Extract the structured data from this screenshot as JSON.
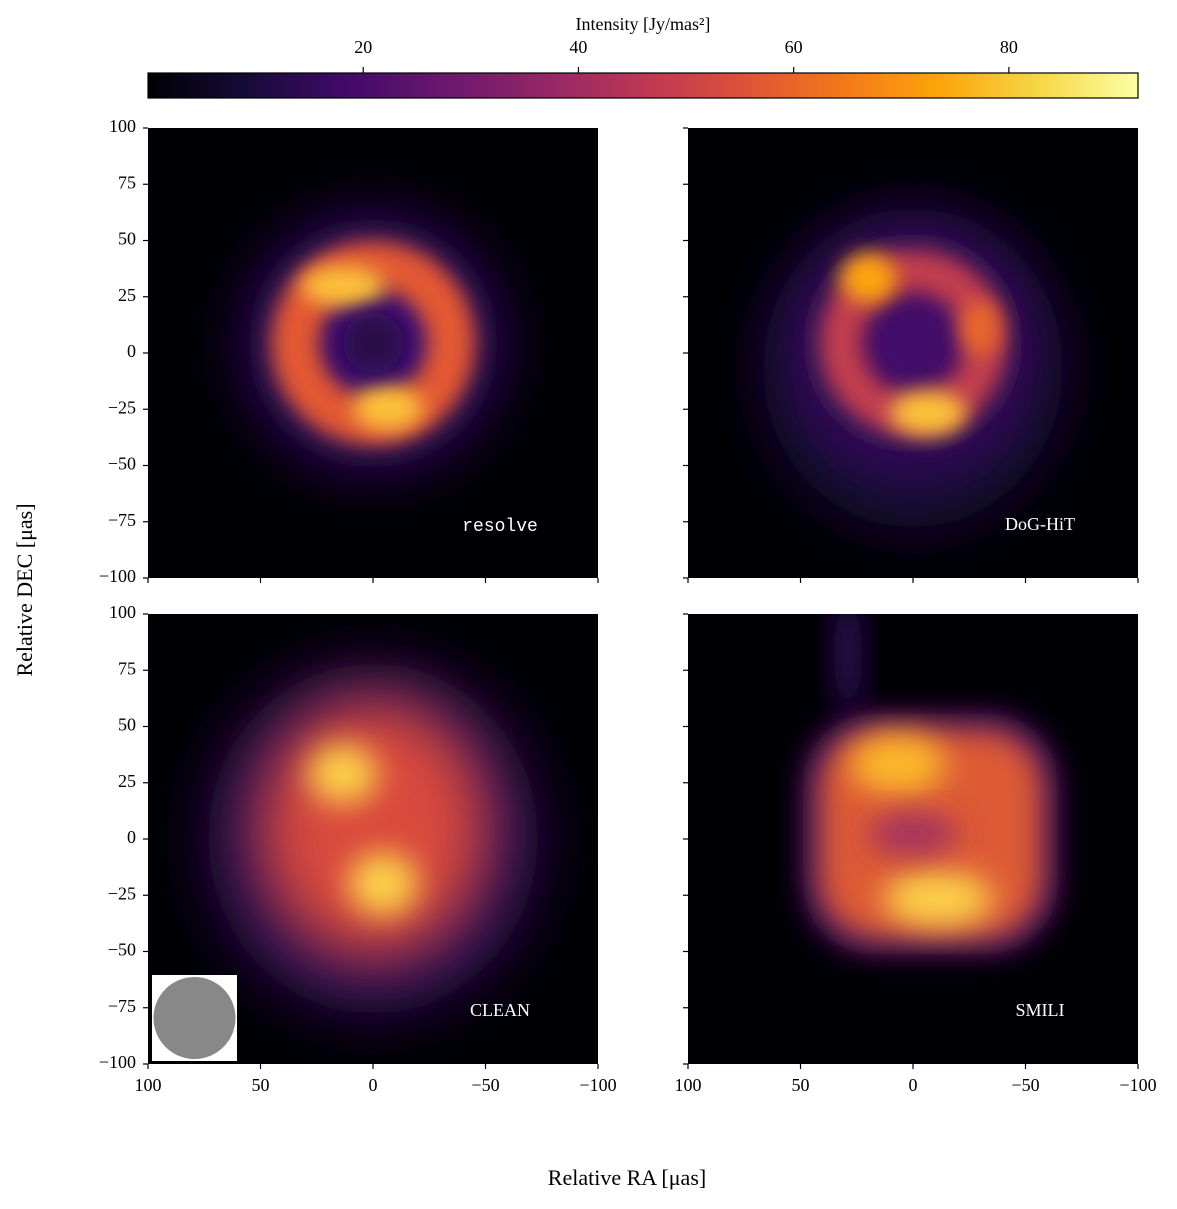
{
  "chart_data": {
    "type": "image-grid",
    "colorbar": {
      "label": "Intensity [Jy/mas²]",
      "lim": [
        0,
        92
      ],
      "ticks": [
        20,
        40,
        60,
        80
      ],
      "colormap": "inferno"
    },
    "x_label": "Relative RA [μas]",
    "y_label": "Relative DEC [μas]",
    "xlim": [
      100,
      -100
    ],
    "ylim": [
      -100,
      100
    ],
    "xticks": [
      100,
      50,
      0,
      {
        "value": -50,
        "label": "−50"
      },
      {
        "value": -100,
        "label": "−100"
      }
    ],
    "yticks": [
      {
        "value": -100,
        "label": "−100"
      },
      {
        "value": -75,
        "label": "−75"
      },
      {
        "value": -50,
        "label": "−50"
      },
      {
        "value": -25,
        "label": "−25"
      },
      0,
      25,
      50,
      75,
      100
    ],
    "panels": [
      {
        "label": "resolve"
      },
      {
        "label": "DoG-HiT"
      },
      {
        "label": "CLEAN"
      },
      {
        "label": "SMILI"
      }
    ]
  }
}
